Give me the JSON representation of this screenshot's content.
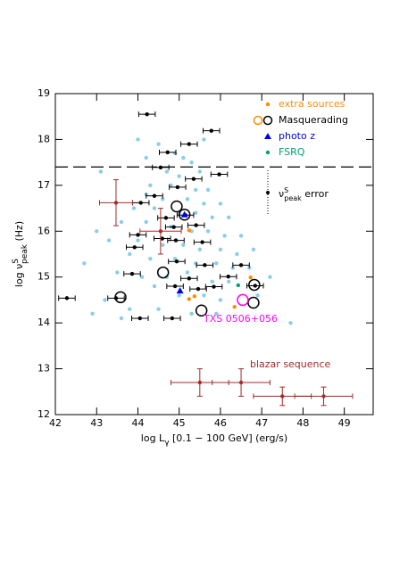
{
  "chart_data": {
    "type": "scatter",
    "x_label": {
      "main": "log L",
      "sub": "γ",
      "rest": " [0.1 − 100 GeV] (erg/s)"
    },
    "y_label": {
      "main": "log ν",
      "sup": "S",
      "sub": "peak",
      "rest": " (Hz)"
    },
    "xlim": [
      42,
      49.7
    ],
    "ylim": [
      12,
      19
    ],
    "xticks": [
      42,
      43,
      44,
      45,
      46,
      47,
      48,
      49
    ],
    "yticks": [
      12,
      13,
      14,
      15,
      16,
      17,
      18,
      19
    ],
    "hlines": [
      17.4
    ],
    "series": [
      {
        "color": "#87ceeb",
        "marker": "dot",
        "x": [
          44.5,
          44.9,
          45.1,
          45.3,
          44.7,
          45.5,
          45.0,
          44.3,
          44.8,
          45.4,
          45.7,
          44.2,
          44.6,
          45.2,
          45.6,
          46.0,
          43.9,
          44.4,
          45.0,
          45.4,
          45.8,
          46.2,
          43.6,
          44.2,
          44.8,
          45.3,
          45.7,
          46.1,
          46.5,
          43.3,
          44.0,
          44.6,
          45.1,
          45.5,
          46.0,
          46.4,
          43.8,
          44.3,
          44.9,
          45.4,
          45.9,
          46.3,
          46.7,
          43.5,
          44.1,
          44.7,
          45.2,
          45.8,
          46.2,
          44.4,
          45.0,
          45.6,
          46.0,
          43.2,
          43.8,
          44.5,
          45.3,
          42.9,
          44.2,
          43.1,
          43.0,
          42.7,
          47.7,
          46.9,
          47.2,
          44.0,
          45.6,
          46.8,
          43.6,
          45.9
        ],
        "y": [
          17.9,
          17.7,
          17.6,
          17.5,
          17.3,
          17.3,
          17.2,
          17.0,
          17.0,
          16.9,
          16.9,
          16.8,
          16.7,
          16.7,
          16.6,
          16.6,
          16.5,
          16.5,
          16.4,
          16.4,
          16.3,
          16.3,
          16.2,
          16.2,
          16.1,
          16.0,
          16.0,
          15.9,
          15.9,
          15.8,
          15.8,
          15.7,
          15.7,
          15.6,
          15.6,
          15.5,
          15.5,
          15.4,
          15.4,
          15.3,
          15.3,
          15.2,
          15.2,
          15.1,
          15.0,
          15.0,
          15.1,
          14.9,
          14.9,
          14.8,
          14.6,
          14.6,
          14.5,
          14.5,
          14.3,
          14.3,
          14.2,
          14.2,
          17.6,
          17.3,
          16.0,
          15.3,
          14.0,
          14.6,
          15.0,
          18.0,
          18.0,
          15.6,
          14.1,
          14.2
        ]
      },
      {
        "color": "#000000",
        "marker": "dot",
        "xerr": 0.2,
        "x": [
          44.22,
          45.78,
          45.24,
          44.72,
          44.55,
          45.35,
          44.96,
          45.97,
          44.4,
          44.07,
          44.68,
          45.15,
          44.87,
          45.41,
          44.0,
          44.59,
          44.92,
          45.56,
          43.92,
          45.62,
          43.86,
          44.94,
          45.24,
          42.28,
          45.46,
          45.84,
          44.9,
          43.47,
          44.05,
          44.83,
          46.19,
          46.5,
          46.84
        ],
        "y": [
          18.55,
          18.19,
          17.9,
          17.72,
          17.39,
          17.14,
          16.96,
          17.24,
          16.77,
          16.62,
          16.29,
          16.35,
          16.09,
          16.13,
          15.92,
          15.84,
          15.8,
          15.76,
          15.65,
          15.26,
          15.07,
          15.34,
          14.97,
          14.54,
          14.74,
          14.79,
          14.8,
          14.54,
          14.1,
          14.1,
          15.01,
          15.26,
          14.81
        ]
      },
      {
        "color": "#a52a2a",
        "marker": "dot",
        "x": [
          43.47,
          44.55
        ],
        "y": [
          16.62,
          16.0
        ],
        "xerr": [
          0.4,
          0.5
        ],
        "yerr": [
          0.5,
          0.5
        ]
      },
      {
        "name": "extra sources",
        "color": "#ff8c00",
        "marker": "dot",
        "x": [
          45.24,
          45.24,
          45.37,
          46.34,
          46.73
        ],
        "y": [
          16.02,
          14.52,
          14.58,
          14.35,
          14.99
        ]
      },
      {
        "name": "Masquerading",
        "color": "#000000",
        "marker": "ring",
        "x": [
          44.94,
          44.61,
          43.58,
          45.54,
          46.82,
          46.8,
          45.13
        ],
        "y": [
          16.54,
          15.1,
          14.56,
          14.27,
          14.83,
          14.44,
          16.36
        ]
      },
      {
        "name": "photo z",
        "color": "#0000ee",
        "marker": "triangle",
        "x": [
          45.02,
          45.13
        ],
        "y": [
          14.7,
          16.36
        ]
      },
      {
        "name": "FSRQ",
        "color": "#00a070",
        "marker": "dot",
        "x": [
          46.43
        ],
        "y": [
          14.82
        ]
      },
      {
        "color": "#ff00ff",
        "marker": "ring",
        "x": [
          46.54
        ],
        "y": [
          14.5
        ]
      },
      {
        "color": "#a52a2a",
        "marker": "dot",
        "x": [
          45.5,
          46.5,
          47.5,
          48.5
        ],
        "y": [
          12.7,
          12.7,
          12.4,
          12.4
        ],
        "xerr": [
          0.7,
          0.7,
          0.7,
          0.7
        ],
        "yerr": [
          0.3,
          0.3,
          0.2,
          0.2
        ]
      }
    ],
    "error_label": {
      "main": "ν",
      "sup": "S",
      "sub": "peak",
      "rest": " error"
    },
    "annotations": [
      {
        "text": "TXS 0506+056",
        "color": "#ff00ff"
      },
      {
        "text": "blazar sequence",
        "color": "#a52a2a"
      }
    ]
  }
}
